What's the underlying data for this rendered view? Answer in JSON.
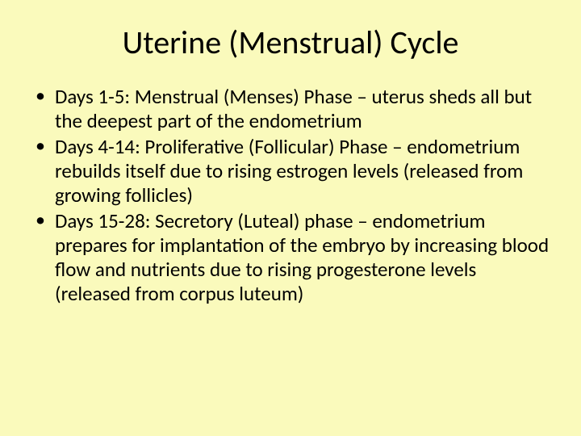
{
  "slide": {
    "background_color": "#fafabc",
    "text_color": "#000000",
    "font_family": "Calibri",
    "title": {
      "text": "Uterine (Menstrual) Cycle",
      "fontsize": 40,
      "align": "center",
      "weight": 400
    },
    "bullets": {
      "fontsize": 25,
      "line_height": 1.2,
      "marker": "•",
      "items": [
        "Days 1-5:  Menstrual (Menses) Phase – uterus sheds all but the deepest part of the endometrium",
        "Days 4-14:  Proliferative (Follicular) Phase – endometrium rebuilds itself due to rising estrogen levels (released from growing follicles)",
        "Days 15-28:  Secretory (Luteal) phase – endometrium prepares for implantation of the embryo by increasing blood flow and nutrients due to rising progesterone levels (released from corpus luteum)"
      ]
    }
  }
}
